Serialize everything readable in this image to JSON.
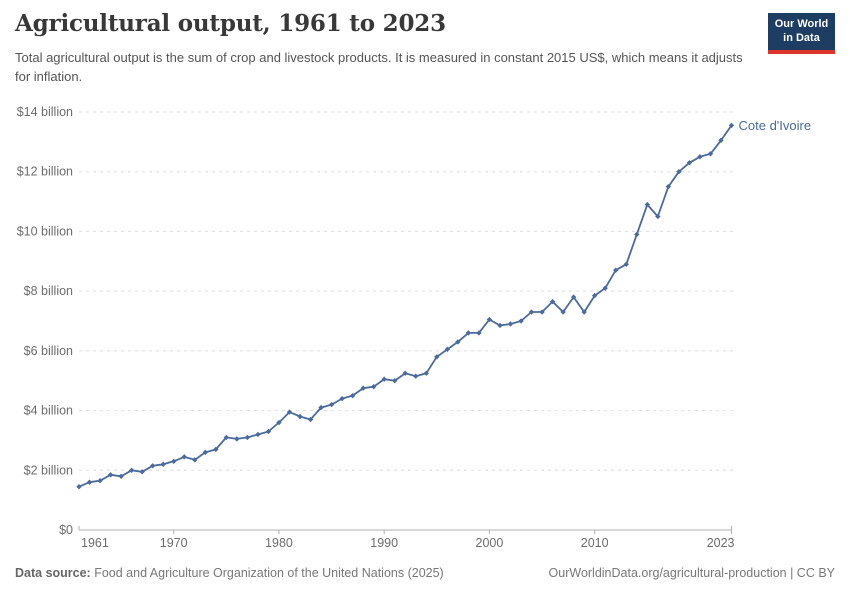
{
  "header": {
    "title": "Agricultural output, 1961 to 2023",
    "subtitle": "Total agricultural output is the sum of crop and livestock products. It is measured in constant 2015 US$, which means it adjusts for inflation."
  },
  "logo": {
    "line1": "Our World",
    "line2": "in Data",
    "bg_color": "#1d3d63",
    "bar_color": "#dc352c"
  },
  "chart_data": {
    "type": "line",
    "title": "Agricultural output, 1961 to 2023",
    "entity": "Cote d'Ivoire",
    "unit": "constant 2015 US$ (billions)",
    "line_color": "#4c6a9c",
    "grid": "dashed",
    "legend_position": "end-of-line-label",
    "xlim": [
      1961,
      2023
    ],
    "ylim": [
      0,
      14
    ],
    "xticks": [
      {
        "value": 1961,
        "label": "1961"
      },
      {
        "value": 1970,
        "label": "1970"
      },
      {
        "value": 1980,
        "label": "1980"
      },
      {
        "value": 1990,
        "label": "1990"
      },
      {
        "value": 2000,
        "label": "2000"
      },
      {
        "value": 2010,
        "label": "2010"
      },
      {
        "value": 2023,
        "label": "2023"
      }
    ],
    "yticks": [
      {
        "value": 0,
        "label": "$0"
      },
      {
        "value": 2,
        "label": "$2 billion"
      },
      {
        "value": 4,
        "label": "$4 billion"
      },
      {
        "value": 6,
        "label": "$6 billion"
      },
      {
        "value": 8,
        "label": "$8 billion"
      },
      {
        "value": 10,
        "label": "$10 billion"
      },
      {
        "value": 12,
        "label": "$12 billion"
      },
      {
        "value": 14,
        "label": "$14 billion"
      }
    ],
    "x": [
      1961,
      1962,
      1963,
      1964,
      1965,
      1966,
      1967,
      1968,
      1969,
      1970,
      1971,
      1972,
      1973,
      1974,
      1975,
      1976,
      1977,
      1978,
      1979,
      1980,
      1981,
      1982,
      1983,
      1984,
      1985,
      1986,
      1987,
      1988,
      1989,
      1990,
      1991,
      1992,
      1993,
      1994,
      1995,
      1996,
      1997,
      1998,
      1999,
      2000,
      2001,
      2002,
      2003,
      2004,
      2005,
      2006,
      2007,
      2008,
      2009,
      2010,
      2011,
      2012,
      2013,
      2014,
      2015,
      2016,
      2017,
      2018,
      2019,
      2020,
      2021,
      2022,
      2023
    ],
    "series": [
      {
        "name": "Cote d'Ivoire",
        "values": [
          1.45,
          1.6,
          1.65,
          1.85,
          1.8,
          2.0,
          1.95,
          2.15,
          2.2,
          2.3,
          2.45,
          2.35,
          2.6,
          2.7,
          3.1,
          3.05,
          3.1,
          3.2,
          3.3,
          3.6,
          3.95,
          3.8,
          3.7,
          4.1,
          4.2,
          4.4,
          4.5,
          4.75,
          4.8,
          5.05,
          5.0,
          5.25,
          5.15,
          5.25,
          5.8,
          6.05,
          6.3,
          6.6,
          6.6,
          7.05,
          6.85,
          6.9,
          7.0,
          7.3,
          7.3,
          7.65,
          7.3,
          7.8,
          7.3,
          7.85,
          8.1,
          8.7,
          8.9,
          9.9,
          10.9,
          10.5,
          11.5,
          12.0,
          12.3,
          12.5,
          12.6,
          13.05,
          13.55
        ]
      }
    ]
  },
  "footer": {
    "source_label": "Data source:",
    "source_text": " Food and Agriculture Organization of the United Nations (2025)",
    "link_text": "OurWorldinData.org/agricultural-production | CC BY"
  }
}
